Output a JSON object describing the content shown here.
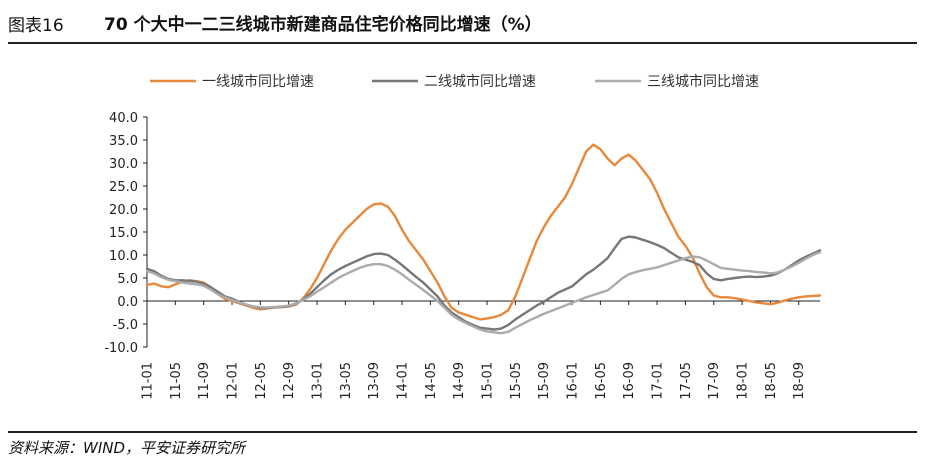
{
  "header": {
    "figure_label": "图表16",
    "title": "70 个大中一二三线城市新建商品住宅价格同比增速（%）"
  },
  "source": "资料来源：WIND，平安证券研究所",
  "chart_data": {
    "type": "line",
    "title": "70 个大中一二三线城市新建商品住宅价格同比增速（%）",
    "xlabel": "",
    "ylabel": "",
    "ylim": [
      -10,
      40
    ],
    "yticks": [
      "40.0",
      "35.0",
      "30.0",
      "25.0",
      "20.0",
      "15.0",
      "10.0",
      "5.0",
      "0.0",
      "-5.0",
      "-10.0"
    ],
    "x": [
      "11-01",
      "11-02",
      "11-03",
      "11-04",
      "11-05",
      "11-06",
      "11-07",
      "11-08",
      "11-09",
      "11-10",
      "11-11",
      "11-12",
      "12-01",
      "12-02",
      "12-03",
      "12-04",
      "12-05",
      "12-06",
      "12-07",
      "12-08",
      "12-09",
      "12-10",
      "12-11",
      "12-12",
      "13-01",
      "13-02",
      "13-03",
      "13-04",
      "13-05",
      "13-06",
      "13-07",
      "13-08",
      "13-09",
      "13-10",
      "13-11",
      "13-12",
      "14-01",
      "14-02",
      "14-03",
      "14-04",
      "14-05",
      "14-06",
      "14-07",
      "14-08",
      "14-09",
      "14-10",
      "14-11",
      "14-12",
      "15-01",
      "15-02",
      "15-03",
      "15-04",
      "15-05",
      "15-06",
      "15-07",
      "15-08",
      "15-09",
      "15-10",
      "15-11",
      "15-12",
      "16-01",
      "16-02",
      "16-03",
      "16-04",
      "16-05",
      "16-06",
      "16-07",
      "16-08",
      "16-09",
      "16-10",
      "16-11",
      "16-12",
      "17-01",
      "17-02",
      "17-03",
      "17-04",
      "17-05",
      "17-06",
      "17-07",
      "17-08",
      "17-09",
      "17-10",
      "17-11",
      "17-12",
      "18-01",
      "18-02",
      "18-03",
      "18-04",
      "18-05",
      "18-06",
      "18-07",
      "18-08",
      "18-09",
      "18-10",
      "18-11",
      "18-12"
    ],
    "xtick_labels": [
      "11-01",
      "11-05",
      "11-09",
      "12-01",
      "12-05",
      "12-09",
      "13-01",
      "13-05",
      "13-09",
      "14-01",
      "14-05",
      "14-09",
      "15-01",
      "15-05",
      "15-09",
      "16-01",
      "16-05",
      "16-09",
      "17-01",
      "17-05",
      "17-09",
      "18-01",
      "18-05",
      "18-09"
    ],
    "legend": "top",
    "series": [
      {
        "name": "一线城市同比增速",
        "color": "#E8883A",
        "values": [
          3.5,
          3.8,
          3.2,
          3.0,
          3.6,
          4.2,
          4.5,
          4.3,
          4.0,
          3.0,
          1.5,
          0.5,
          0.0,
          -0.5,
          -1.0,
          -1.5,
          -1.8,
          -1.6,
          -1.4,
          -1.3,
          -1.2,
          -0.8,
          0.5,
          2.5,
          5.0,
          8.0,
          11.0,
          13.5,
          15.5,
          17.0,
          18.5,
          20.0,
          21.0,
          21.2,
          20.5,
          18.5,
          15.5,
          13.0,
          11.0,
          9.0,
          6.5,
          4.0,
          1.0,
          -1.5,
          -2.5,
          -3.0,
          -3.5,
          -4.0,
          -3.8,
          -3.5,
          -3.0,
          -2.0,
          1.0,
          5.0,
          9.0,
          13.0,
          16.0,
          18.5,
          20.5,
          22.5,
          25.5,
          29.0,
          32.5,
          34.0,
          33.0,
          31.0,
          29.5,
          31.0,
          31.8,
          30.5,
          28.5,
          26.5,
          23.5,
          20.0,
          17.0,
          14.0,
          12.0,
          9.5,
          6.0,
          3.0,
          1.2,
          0.8,
          0.8,
          0.6,
          0.3,
          0.0,
          -0.3,
          -0.5,
          -0.7,
          -0.4,
          0.1,
          0.5,
          0.8,
          1.0,
          1.1,
          1.2
        ]
      },
      {
        "name": "二线城市同比增速",
        "color": "#777777",
        "values": [
          7.0,
          6.5,
          5.5,
          4.8,
          4.5,
          4.5,
          4.4,
          4.2,
          3.8,
          3.0,
          2.0,
          1.0,
          0.5,
          -0.2,
          -0.8,
          -1.2,
          -1.5,
          -1.5,
          -1.4,
          -1.3,
          -1.1,
          -0.6,
          0.3,
          1.5,
          3.0,
          4.5,
          5.8,
          6.8,
          7.6,
          8.3,
          9.0,
          9.7,
          10.2,
          10.3,
          10.0,
          9.0,
          7.8,
          6.5,
          5.2,
          4.0,
          2.5,
          1.0,
          -1.0,
          -2.5,
          -3.5,
          -4.5,
          -5.2,
          -5.8,
          -6.0,
          -6.2,
          -6.0,
          -5.2,
          -4.0,
          -3.0,
          -2.0,
          -1.0,
          -0.2,
          0.8,
          1.8,
          2.5,
          3.2,
          4.5,
          5.8,
          6.8,
          8.0,
          9.3,
          11.5,
          13.5,
          14.0,
          13.8,
          13.3,
          12.8,
          12.2,
          11.5,
          10.5,
          9.5,
          9.0,
          8.5,
          7.8,
          6.0,
          4.8,
          4.5,
          4.8,
          5.0,
          5.2,
          5.3,
          5.2,
          5.3,
          5.5,
          6.0,
          6.8,
          7.8,
          8.8,
          9.6,
          10.3,
          11.0
        ]
      },
      {
        "name": "三线城市同比增速",
        "color": "#ABABAB",
        "values": [
          6.5,
          6.0,
          5.2,
          4.6,
          4.3,
          4.0,
          3.8,
          3.6,
          3.3,
          2.5,
          1.5,
          0.8,
          0.2,
          -0.3,
          -0.8,
          -1.2,
          -1.4,
          -1.4,
          -1.3,
          -1.2,
          -1.0,
          -0.5,
          0.2,
          1.0,
          2.0,
          3.0,
          4.0,
          5.0,
          5.8,
          6.5,
          7.2,
          7.7,
          8.0,
          8.0,
          7.6,
          6.8,
          5.8,
          4.6,
          3.5,
          2.4,
          1.2,
          0.0,
          -1.5,
          -3.0,
          -4.0,
          -4.8,
          -5.5,
          -6.2,
          -6.6,
          -6.8,
          -7.0,
          -6.7,
          -5.8,
          -5.0,
          -4.2,
          -3.5,
          -2.8,
          -2.2,
          -1.6,
          -1.0,
          -0.4,
          0.2,
          0.8,
          1.3,
          1.8,
          2.3,
          3.5,
          4.8,
          5.8,
          6.3,
          6.7,
          7.0,
          7.3,
          7.8,
          8.3,
          8.8,
          9.3,
          9.7,
          9.5,
          8.8,
          8.0,
          7.2,
          7.0,
          6.8,
          6.6,
          6.5,
          6.3,
          6.2,
          6.0,
          6.2,
          6.8,
          7.5,
          8.3,
          9.2,
          10.0,
          10.6
        ]
      }
    ]
  }
}
